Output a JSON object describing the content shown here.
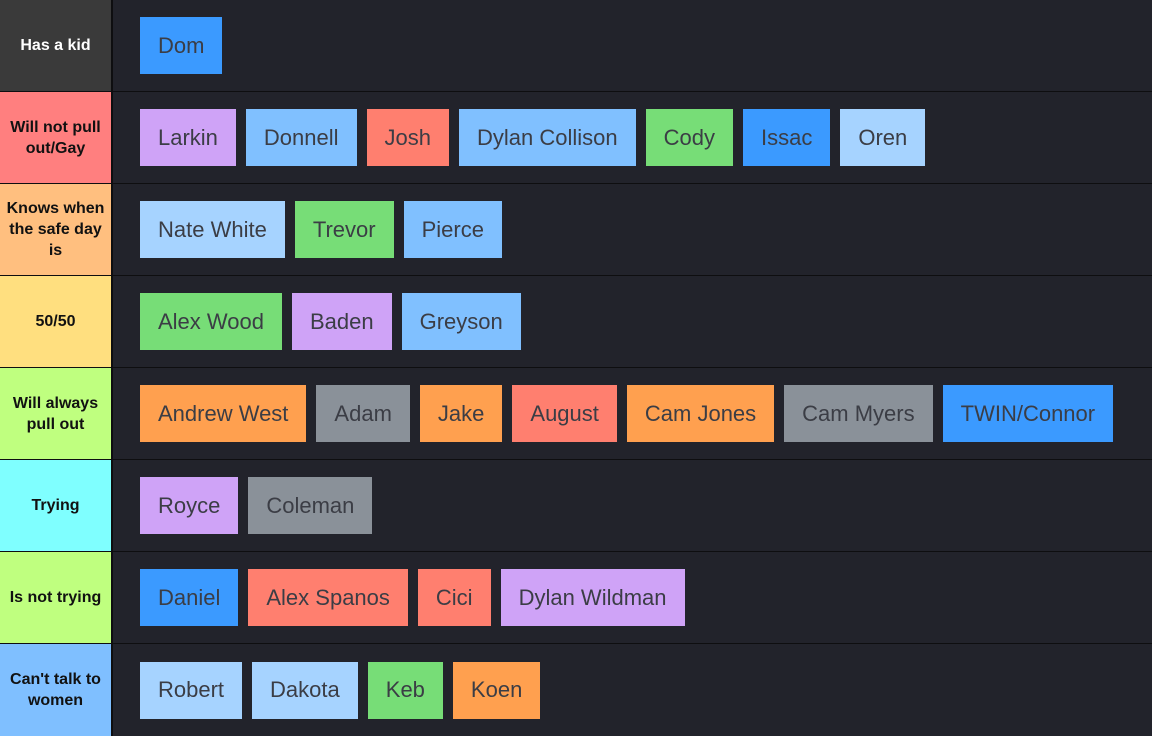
{
  "tiers": [
    {
      "label": "Has a kid",
      "color": "#3a3a3a",
      "items": [
        {
          "name": "Dom",
          "color": "#3b9aff"
        }
      ]
    },
    {
      "label": "Will not pull out/Gay",
      "color": "#ff7f7f",
      "items": [
        {
          "name": "Larkin",
          "color": "#cfa3f7"
        },
        {
          "name": "Donnell",
          "color": "#80c0ff"
        },
        {
          "name": "Josh",
          "color": "#ff7f6f"
        },
        {
          "name": "Dylan Collison",
          "color": "#80c0ff"
        },
        {
          "name": "Cody",
          "color": "#77dd77"
        },
        {
          "name": "Issac",
          "color": "#3b9aff"
        },
        {
          "name": "Oren",
          "color": "#a6d3ff"
        }
      ]
    },
    {
      "label": "Knows when the safe day is",
      "color": "#ffbf7f",
      "items": [
        {
          "name": "Nate White",
          "color": "#a6d3ff"
        },
        {
          "name": "Trevor",
          "color": "#77dd77"
        },
        {
          "name": "Pierce",
          "color": "#80c0ff"
        }
      ]
    },
    {
      "label": "50/50",
      "color": "#ffdf7f",
      "items": [
        {
          "name": "Alex Wood",
          "color": "#77dd77"
        },
        {
          "name": "Baden",
          "color": "#cfa3f7"
        },
        {
          "name": "Greyson",
          "color": "#80c0ff"
        }
      ]
    },
    {
      "label": "Will always pull out",
      "color": "#bfff7f",
      "items": [
        {
          "name": "Andrew West",
          "color": "#ffa04f"
        },
        {
          "name": "Adam",
          "color": "#8a9199"
        },
        {
          "name": "Jake",
          "color": "#ffa04f"
        },
        {
          "name": "August",
          "color": "#ff7f6f"
        },
        {
          "name": "Cam Jones",
          "color": "#ffa04f"
        },
        {
          "name": "Cam Myers",
          "color": "#8a9199"
        },
        {
          "name": "TWIN/Connor",
          "color": "#3b9aff"
        }
      ]
    },
    {
      "label": "Trying",
      "color": "#7fffff",
      "items": [
        {
          "name": "Royce",
          "color": "#cfa3f7"
        },
        {
          "name": "Coleman",
          "color": "#8a9199"
        }
      ]
    },
    {
      "label": "Is not trying",
      "color": "#bfff7f",
      "items": [
        {
          "name": "Daniel",
          "color": "#3b9aff"
        },
        {
          "name": "Alex Spanos",
          "color": "#ff7f6f"
        },
        {
          "name": "Cici",
          "color": "#ff7f6f"
        },
        {
          "name": "Dylan Wildman",
          "color": "#cfa3f7"
        }
      ]
    },
    {
      "label": "Can't talk to women",
      "color": "#7fbfff",
      "items": [
        {
          "name": "Robert",
          "color": "#a6d3ff"
        },
        {
          "name": "Dakota",
          "color": "#a6d3ff"
        },
        {
          "name": "Keb",
          "color": "#77dd77"
        },
        {
          "name": "Koen",
          "color": "#ffa04f"
        }
      ]
    }
  ]
}
